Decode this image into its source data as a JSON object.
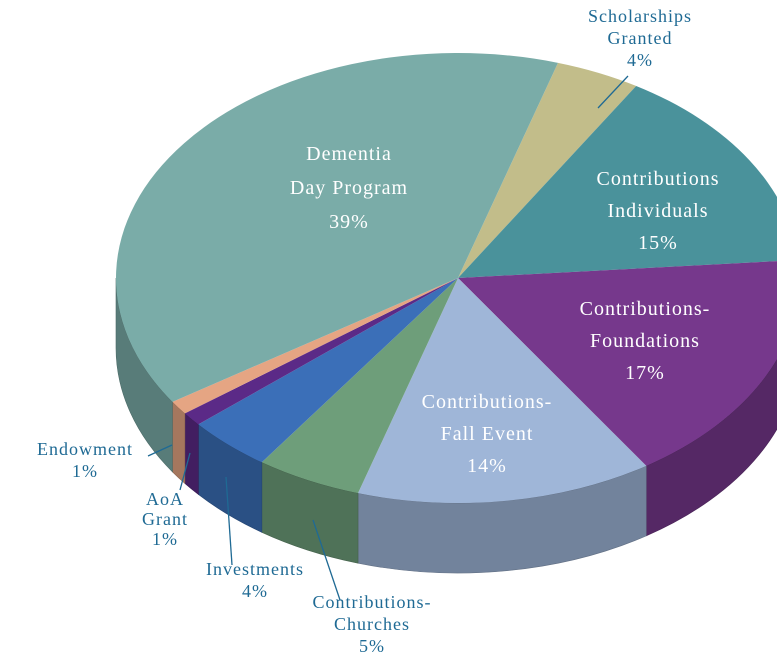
{
  "chart_data": {
    "type": "pie3d",
    "categories": [
      "Scholarships\nGranted",
      "Contributions\nIndividuals",
      "Contributions-\nFoundations",
      "Contributions-\nFall Event",
      "Contributions-\nChurches",
      "Investments",
      "AoA\nGrant",
      "Endowment",
      "Dementia\nDay Program"
    ],
    "values": [
      4,
      15,
      17,
      14,
      5,
      4,
      1,
      1,
      39
    ],
    "value_labels": [
      "4%",
      "15%",
      "17%",
      "14%",
      "5%",
      "4%",
      "1%",
      "1%",
      "39%"
    ],
    "colors": [
      "#c2bd8a",
      "#4a929b",
      "#76388c",
      "#9fb6d8",
      "#6e9e7a",
      "#3b6fb8",
      "#5b2a87",
      "#e5a583",
      "#7aaca8"
    ]
  }
}
